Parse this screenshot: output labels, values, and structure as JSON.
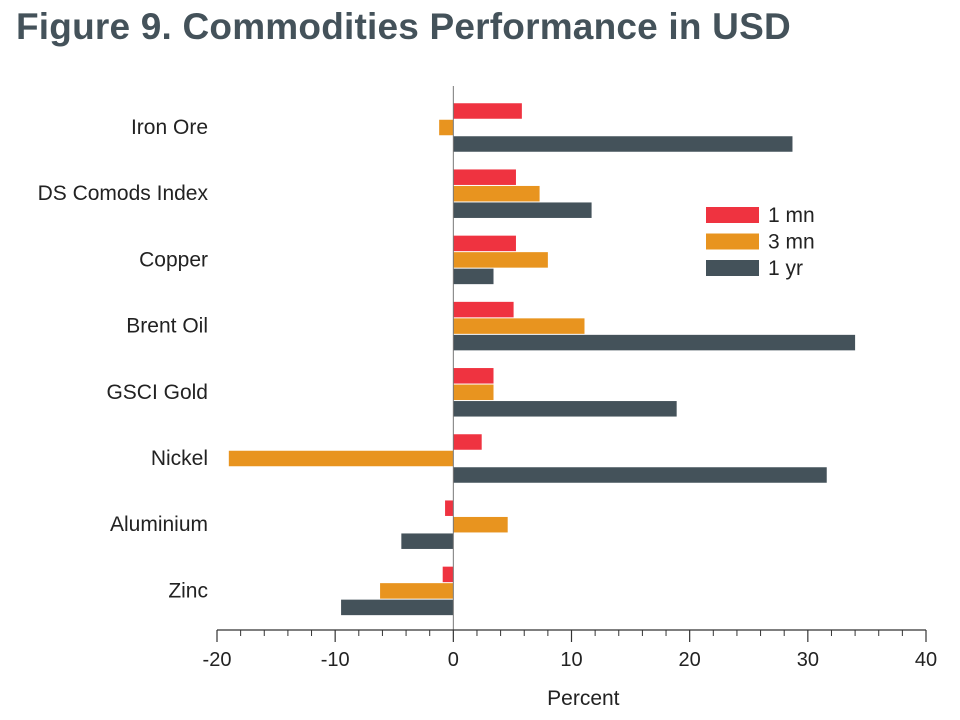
{
  "title": "Figure 9. Commodities Performance in USD",
  "chart_data": {
    "type": "bar",
    "orientation": "horizontal",
    "categories": [
      "Iron Ore",
      "DS Comods Index",
      "Copper",
      "Brent Oil",
      "GSCI Gold",
      "Nickel",
      "Aluminium",
      "Zinc"
    ],
    "series": [
      {
        "name": "1 mn",
        "color": "#ef3340",
        "values": [
          5.8,
          5.3,
          5.3,
          5.1,
          3.4,
          2.4,
          -0.7,
          -0.9
        ]
      },
      {
        "name": "3 mn",
        "color": "#e8941f",
        "values": [
          -1.2,
          7.3,
          8.0,
          11.1,
          3.4,
          -19.0,
          4.6,
          -6.2
        ]
      },
      {
        "name": "1 yr",
        "color": "#44525a",
        "values": [
          28.7,
          11.7,
          3.4,
          34.0,
          18.9,
          31.6,
          -4.4,
          -9.5
        ]
      }
    ],
    "xlabel": "Percent",
    "xlim": [
      -20,
      40
    ],
    "xticks": [
      "-20",
      "-10",
      "0",
      "10",
      "20",
      "30",
      "40"
    ],
    "grid": false,
    "legend_position": "right"
  }
}
